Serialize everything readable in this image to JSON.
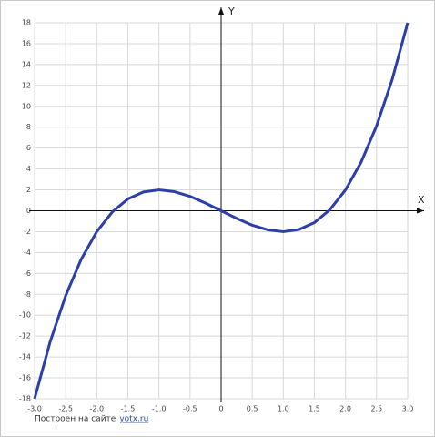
{
  "chart_data": {
    "type": "line",
    "x_axis_label": "X",
    "y_axis_label": "Y",
    "x": [
      -3,
      -2.75,
      -2.5,
      -2.25,
      -2,
      -1.75,
      -1.5,
      -1.25,
      -1,
      -0.75,
      -0.5,
      -0.25,
      0,
      0.25,
      0.5,
      0.75,
      1,
      1.25,
      1.5,
      1.75,
      2,
      2.25,
      2.5,
      2.75,
      3
    ],
    "series": [
      {
        "color": "#2b3fa6",
        "values": [
          -18,
          -12.55,
          -8.13,
          -4.64,
          -2,
          -0.11,
          1.13,
          1.8,
          2,
          1.83,
          1.38,
          0.73,
          0,
          -0.73,
          -1.38,
          -1.83,
          -2,
          -1.8,
          -1.13,
          0.11,
          2,
          4.64,
          8.13,
          12.55,
          18
        ]
      }
    ],
    "xlim": [
      -3,
      3
    ],
    "xticks": [
      {
        "value": -3,
        "label": "-3.0"
      },
      -2.5,
      {
        "value": -2,
        "label": "-2.0"
      },
      -1.5,
      {
        "value": -1,
        "label": "-1.0"
      },
      -0.5,
      0,
      0.5,
      {
        "value": 1,
        "label": "1.0"
      },
      1.5,
      {
        "value": 2,
        "label": "2.0"
      },
      2.5,
      {
        "value": 3,
        "label": "3.0"
      }
    ],
    "ylim": [
      -18,
      18
    ],
    "yticks": [
      -18,
      -16,
      -14,
      -12,
      -10,
      -8,
      -6,
      -4,
      -2,
      0,
      2,
      4,
      6,
      8,
      10,
      12,
      14,
      16,
      18
    ],
    "grid": true,
    "footer_text": "Построен на сайте",
    "footer_link": "yotx.ru"
  }
}
